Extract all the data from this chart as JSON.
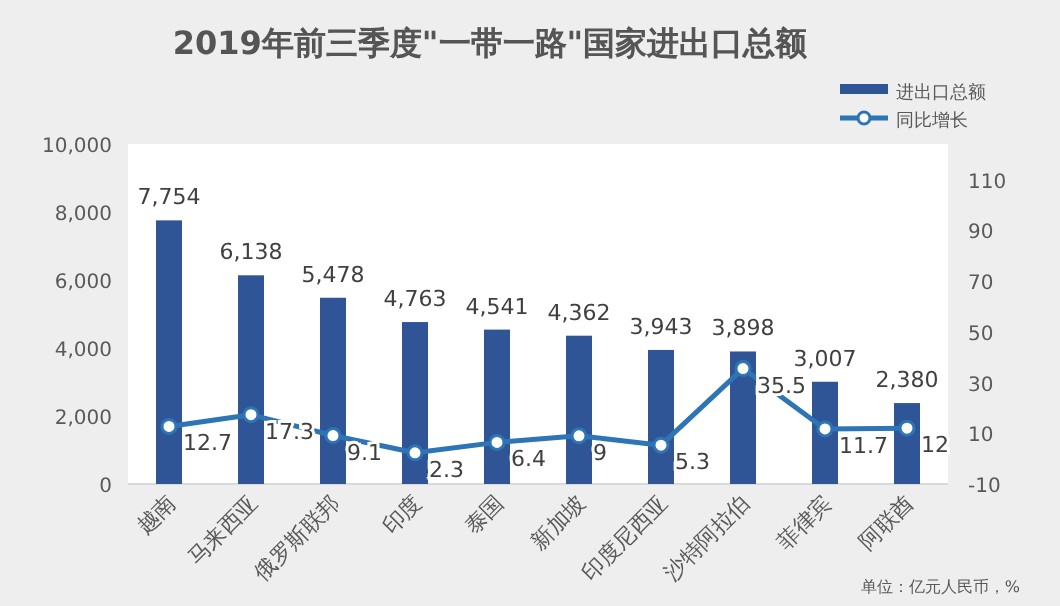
{
  "chart_data": {
    "type": "bar",
    "title": "2019年前三季度\"一带一路\"国家进出口总额",
    "categories": [
      "越南",
      "马来西亚",
      "俄罗斯联邦",
      "印度",
      "泰国",
      "新加坡",
      "印度尼西亚",
      "沙特阿拉伯",
      "菲律宾",
      "阿联酋"
    ],
    "series": [
      {
        "name": "进出口总额",
        "color": "#2f5597",
        "values": [
          7754,
          6138,
          5478,
          4763,
          4541,
          4362,
          3943,
          3898,
          3007,
          2380
        ],
        "value_labels": [
          "7,754",
          "6,138",
          "5,478",
          "4,763",
          "4,541",
          "4,362",
          "3,943",
          "3,898",
          "3,007",
          "2,380"
        ]
      },
      {
        "name": "同比增长",
        "type": "line",
        "axis": "y2",
        "color": "#2e75b6",
        "marker": "circle",
        "values": [
          12.7,
          17.3,
          9.1,
          2.3,
          6.4,
          9,
          5.3,
          35.5,
          11.7,
          12
        ]
      }
    ],
    "ylim": [
      0,
      10000
    ],
    "yticks": [
      {
        "value": 0,
        "label": "0"
      },
      {
        "value": 2000,
        "label": "2,000"
      },
      {
        "value": 4000,
        "label": "4,000"
      },
      {
        "value": 6000,
        "label": "6,000"
      },
      {
        "value": 8000,
        "label": "8,000"
      },
      {
        "value": 10000,
        "label": "10,000"
      }
    ],
    "y2lim": [
      -10,
      124
    ],
    "y2ticks": [
      -10,
      10,
      30,
      50,
      70,
      90,
      110
    ],
    "data_labels": true,
    "legend": "top right",
    "annotations": [
      "单位：亿元人民币，%"
    ]
  }
}
